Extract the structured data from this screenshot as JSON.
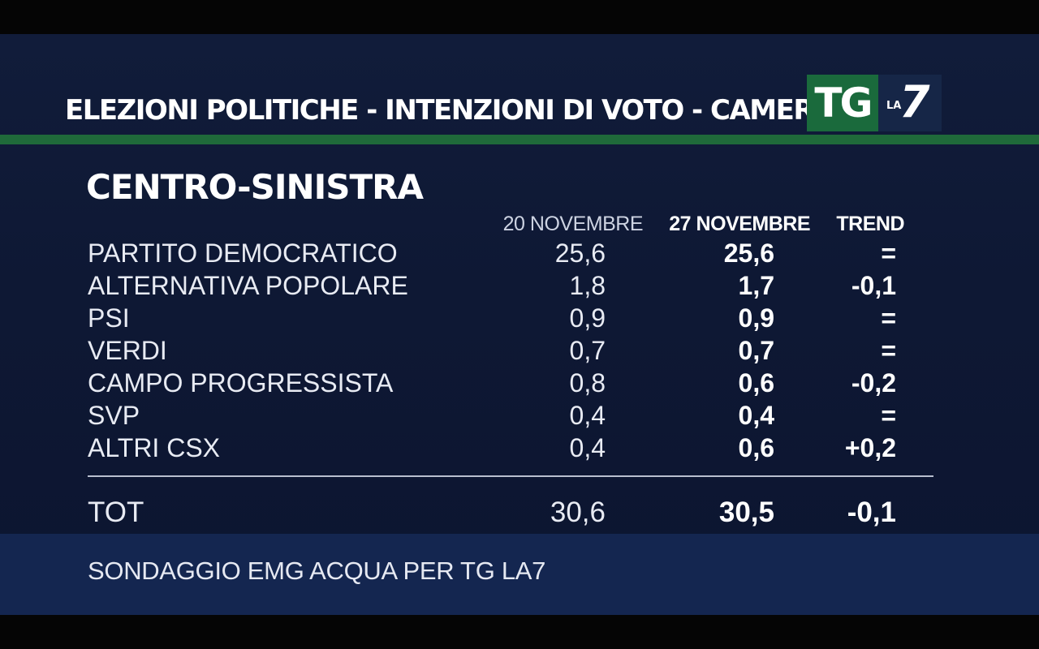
{
  "header": {
    "title": "ELEZIONI POLITICHE - INTENZIONI DI VOTO - CAMERA",
    "logo": {
      "tg": "TG",
      "la": "LA",
      "seven": "7"
    }
  },
  "section_title": "CENTRO-SINISTRA",
  "columns": [
    "20 NOVEMBRE",
    "27 NOVEMBRE",
    "TREND"
  ],
  "rows": [
    {
      "name": "PARTITO DEMOCRATICO",
      "v1": "25,6",
      "v2": "25,6",
      "trend": "="
    },
    {
      "name": "ALTERNATIVA POPOLARE",
      "v1": "1,8",
      "v2": "1,7",
      "trend": "-0,1"
    },
    {
      "name": "PSI",
      "v1": "0,9",
      "v2": "0,9",
      "trend": "="
    },
    {
      "name": "VERDI",
      "v1": "0,7",
      "v2": "0,7",
      "trend": "="
    },
    {
      "name": "CAMPO PROGRESSISTA",
      "v1": "0,8",
      "v2": "0,6",
      "trend": "-0,2"
    },
    {
      "name": "SVP",
      "v1": "0,4",
      "v2": "0,4",
      "trend": "="
    },
    {
      "name": "ALTRI CSX",
      "v1": "0,4",
      "v2": "0,6",
      "trend": "+0,2"
    }
  ],
  "total": {
    "name": "TOT",
    "v1": "30,6",
    "v2": "30,5",
    "trend": "-0,1"
  },
  "footer": "SONDAGGIO EMG ACQUA PER TG LA7",
  "colors": {
    "background": "#0e1834",
    "green_rule": "#1f6a3a",
    "footer_band": "#142650",
    "logo_green": "#1a6a3c"
  },
  "chart_data": {
    "type": "table",
    "title": "CENTRO-SINISTRA",
    "columns": [
      "20 NOVEMBRE",
      "27 NOVEMBRE",
      "TREND"
    ],
    "categories": [
      "PARTITO DEMOCRATICO",
      "ALTERNATIVA POPOLARE",
      "PSI",
      "VERDI",
      "CAMPO PROGRESSISTA",
      "SVP",
      "ALTRI CSX"
    ],
    "series": [
      {
        "name": "20 NOVEMBRE",
        "values": [
          25.6,
          1.8,
          0.9,
          0.7,
          0.8,
          0.4,
          0.4
        ]
      },
      {
        "name": "27 NOVEMBRE",
        "values": [
          25.6,
          1.7,
          0.9,
          0.7,
          0.6,
          0.4,
          0.6
        ]
      }
    ],
    "trend": [
      "=",
      "-0,1",
      "=",
      "=",
      "-0,2",
      "=",
      "+0,2"
    ],
    "total": {
      "20 NOVEMBRE": 30.6,
      "27 NOVEMBRE": 30.5,
      "TREND": "-0,1"
    }
  }
}
